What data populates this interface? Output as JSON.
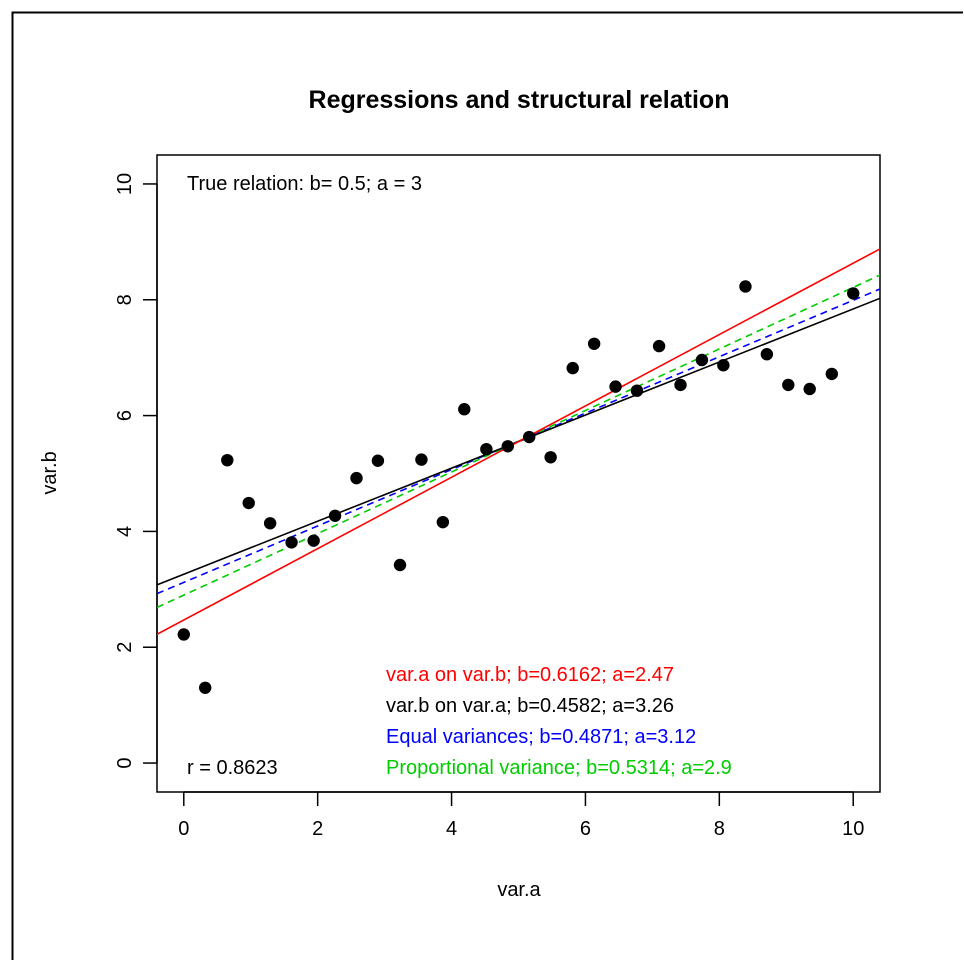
{
  "chart_data": {
    "type": "scatter",
    "title": "Regressions and structural relation",
    "xlabel": "var.a",
    "ylabel": "var.b",
    "xlim": [
      -0.4,
      10.4
    ],
    "ylim": [
      -0.5,
      10.5
    ],
    "x_ticks": [
      "0",
      "2",
      "4",
      "6",
      "8",
      "10"
    ],
    "y_ticks": [
      "0",
      "2",
      "4",
      "6",
      "8",
      "10"
    ],
    "grid": false,
    "points": [
      {
        "x": 0.0,
        "y": 2.22
      },
      {
        "x": 0.32,
        "y": 1.3
      },
      {
        "x": 0.65,
        "y": 5.23
      },
      {
        "x": 0.97,
        "y": 4.49
      },
      {
        "x": 1.29,
        "y": 4.14
      },
      {
        "x": 1.61,
        "y": 3.81
      },
      {
        "x": 1.94,
        "y": 3.84
      },
      {
        "x": 2.26,
        "y": 4.27
      },
      {
        "x": 2.58,
        "y": 4.92
      },
      {
        "x": 2.9,
        "y": 5.22
      },
      {
        "x": 3.23,
        "y": 3.42
      },
      {
        "x": 3.55,
        "y": 5.24
      },
      {
        "x": 3.87,
        "y": 4.16
      },
      {
        "x": 4.19,
        "y": 6.11
      },
      {
        "x": 4.52,
        "y": 5.42
      },
      {
        "x": 4.84,
        "y": 5.47
      },
      {
        "x": 5.16,
        "y": 5.63
      },
      {
        "x": 5.48,
        "y": 5.28
      },
      {
        "x": 5.81,
        "y": 6.82
      },
      {
        "x": 6.13,
        "y": 7.24
      },
      {
        "x": 6.45,
        "y": 6.5
      },
      {
        "x": 6.77,
        "y": 6.43
      },
      {
        "x": 7.1,
        "y": 7.2
      },
      {
        "x": 7.42,
        "y": 6.53
      },
      {
        "x": 7.74,
        "y": 6.96
      },
      {
        "x": 8.06,
        "y": 6.87
      },
      {
        "x": 8.39,
        "y": 8.23
      },
      {
        "x": 8.71,
        "y": 7.06
      },
      {
        "x": 9.03,
        "y": 6.53
      },
      {
        "x": 9.35,
        "y": 6.46
      },
      {
        "x": 9.68,
        "y": 6.72
      },
      {
        "x": 10.0,
        "y": 8.11
      }
    ],
    "lines": [
      {
        "label": "var.a on var.b; b=0.6162; a=2.47",
        "slope": 0.6162,
        "intercept": 2.47,
        "color": "#ff0000",
        "dash": "solid"
      },
      {
        "label": "var.b on var.a; b=0.4582; a=3.26",
        "slope": 0.4582,
        "intercept": 3.26,
        "color": "#000000",
        "dash": "solid"
      },
      {
        "label": "Equal variances; b=0.4871; a=3.12",
        "slope": 0.4871,
        "intercept": 3.12,
        "color": "#0000ff",
        "dash": "dashed"
      },
      {
        "label": "Proportional variance; b=0.5314; a=2.9",
        "slope": 0.5314,
        "intercept": 2.9,
        "color": "#00cc00",
        "dash": "dashed"
      }
    ],
    "annotations": {
      "true_relation": "True relation:  b= 0.5; a = 3",
      "correlation": "r = 0.8623"
    }
  }
}
